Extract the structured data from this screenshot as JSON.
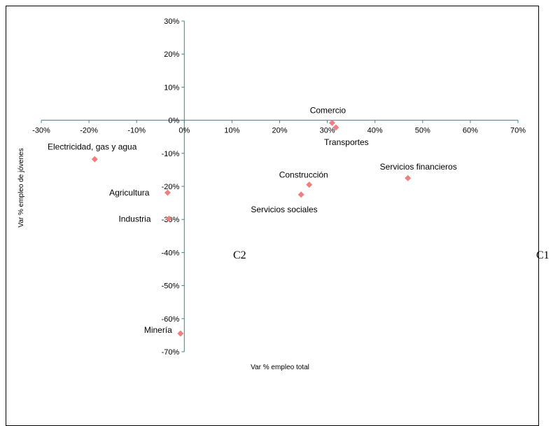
{
  "chart_data": {
    "type": "scatter",
    "title": "",
    "xlabel": "Var % empleo total",
    "ylabel": "Var % empleo de jóvenes",
    "xlim": [
      -0.3,
      0.7
    ],
    "ylim": [
      -0.7,
      0.3
    ],
    "x_ticks": [
      {
        "value": -0.3,
        "label": "-30%"
      },
      {
        "value": -0.2,
        "label": "-20%"
      },
      {
        "value": -0.1,
        "label": "-10%"
      },
      {
        "value": 0.0,
        "label": "0%"
      },
      {
        "value": 0.1,
        "label": "10%"
      },
      {
        "value": 0.2,
        "label": "20%"
      },
      {
        "value": 0.3,
        "label": "30%"
      },
      {
        "value": 0.4,
        "label": "40%"
      },
      {
        "value": 0.5,
        "label": "50%"
      },
      {
        "value": 0.6,
        "label": "60%"
      },
      {
        "value": 0.7,
        "label": "70%"
      }
    ],
    "y_ticks": [
      {
        "value": 0.3,
        "label": "30%"
      },
      {
        "value": 0.2,
        "label": "20%"
      },
      {
        "value": 0.1,
        "label": "10%"
      },
      {
        "value": 0.0,
        "label": "0%"
      },
      {
        "value": -0.1,
        "label": "-10%"
      },
      {
        "value": -0.2,
        "label": "-20%"
      },
      {
        "value": -0.3,
        "label": "-30%"
      },
      {
        "value": -0.4,
        "label": "-40%"
      },
      {
        "value": -0.5,
        "label": "-50%"
      },
      {
        "value": -0.6,
        "label": "-60%"
      },
      {
        "value": -0.7,
        "label": "-70%"
      }
    ],
    "grid": false,
    "marker_color": "#f08080",
    "axis_color": "#2e8b8b",
    "points": [
      {
        "name": "Comercio",
        "x": 0.31,
        "y": -0.008,
        "label_pos": "above"
      },
      {
        "name": "Transportes",
        "x": 0.318,
        "y": -0.022,
        "label_pos": "below"
      },
      {
        "name": "Electricidad, gas y agua",
        "x": -0.188,
        "y": -0.118,
        "label_pos": "above-left"
      },
      {
        "name": "Construcción",
        "x": 0.262,
        "y": -0.195,
        "label_pos": "above"
      },
      {
        "name": "Servicios financieros",
        "x": 0.469,
        "y": -0.175,
        "label_pos": "above"
      },
      {
        "name": "Agricultura",
        "x": -0.035,
        "y": -0.219,
        "label_pos": "left"
      },
      {
        "name": "Servicios sociales",
        "x": 0.245,
        "y": -0.225,
        "label_pos": "below"
      },
      {
        "name": "Industria",
        "x": -0.032,
        "y": -0.298,
        "label_pos": "left"
      },
      {
        "name": "Minería",
        "x": -0.008,
        "y": -0.645,
        "label_pos": "left"
      }
    ],
    "annotations": [
      "C2",
      "C1"
    ]
  }
}
